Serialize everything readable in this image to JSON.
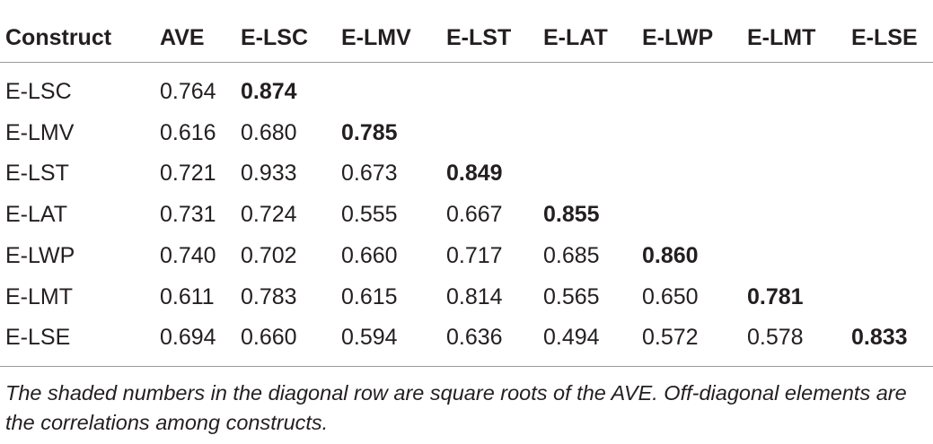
{
  "table": {
    "headers": [
      "Construct",
      "AVE",
      "E-LSC",
      "E-LMV",
      "E-LST",
      "E-LAT",
      "E-LWP",
      "E-LMT",
      "E-LSE"
    ],
    "rows": [
      [
        "E-LSC",
        "0.764",
        "0.874"
      ],
      [
        "E-LMV",
        "0.616",
        "0.680",
        "0.785"
      ],
      [
        "E-LST",
        "0.721",
        "0.933",
        "0.673",
        "0.849"
      ],
      [
        "E-LAT",
        "0.731",
        "0.724",
        "0.555",
        "0.667",
        "0.855"
      ],
      [
        "E-LWP",
        "0.740",
        "0.702",
        "0.660",
        "0.717",
        "0.685",
        "0.860"
      ],
      [
        "E-LMT",
        "0.611",
        "0.783",
        "0.615",
        "0.814",
        "0.565",
        "0.650",
        "0.781"
      ],
      [
        "E-LSE",
        "0.694",
        "0.660",
        "0.594",
        "0.636",
        "0.494",
        "0.572",
        "0.578",
        "0.833"
      ]
    ],
    "footnote": "The shaded numbers in the diagonal row are square roots of the AVE. Off-diagonal elements are the correlations among constructs."
  }
}
